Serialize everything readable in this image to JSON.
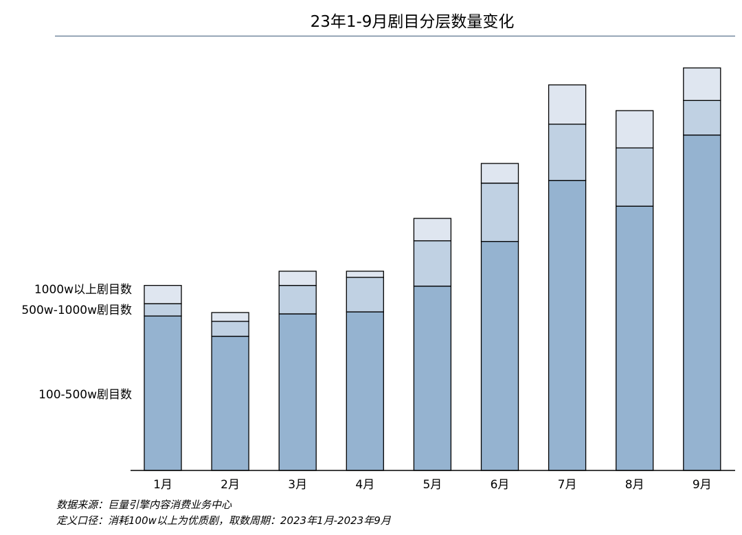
{
  "chart_data": {
    "type": "bar",
    "stacked": true,
    "title": "23年1-9月剧目分层数量变化",
    "categories": [
      "1月",
      "2月",
      "3月",
      "4月",
      "5月",
      "6月",
      "7月",
      "8月",
      "9月"
    ],
    "series": [
      {
        "name": "100-500w剧目数",
        "color": "#95b3d0",
        "values": [
          228,
          198,
          231,
          234,
          272,
          338,
          428,
          390,
          495
        ]
      },
      {
        "name": "500w-1000w剧目数",
        "color": "#c0d1e3",
        "values": [
          18,
          22,
          42,
          51,
          67,
          86,
          83,
          86,
          51
        ]
      },
      {
        "name": "1000w以上剧目数",
        "color": "#dfe6f0",
        "values": [
          27,
          13,
          21,
          9,
          33,
          29,
          58,
          55,
          48
        ]
      }
    ],
    "legend_labels": [
      "1000w以上剧目数",
      "500w-1000w剧目数",
      "100-500w剧目数"
    ],
    "ylim": [
      0,
      600
    ],
    "grid": false,
    "legend": "left"
  },
  "footnote": {
    "source": "数据来源：巨量引擎内容消费业务中心",
    "definition": "定义口径：消耗100w以上为优质剧，取数周期：2023年1月-2023年9月"
  }
}
